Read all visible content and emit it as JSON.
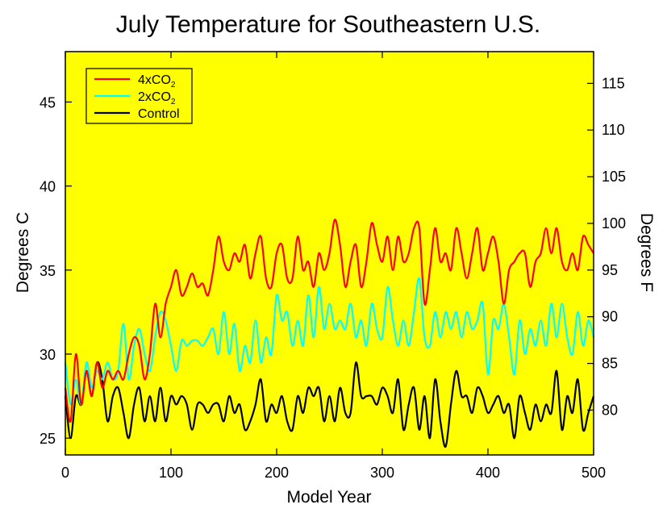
{
  "chart_data": {
    "type": "line",
    "title": "July Temperature for Southeastern U.S.",
    "xlabel": "Model Year",
    "ylabel": "Degrees C",
    "y2label": "Degrees F",
    "xlim": [
      0,
      500
    ],
    "ylim": [
      24,
      48
    ],
    "y2lim": [
      75.2,
      118.4
    ],
    "x_ticks": [
      "0",
      "100",
      "200",
      "300",
      "400",
      "500"
    ],
    "y_ticks": [
      "25",
      "30",
      "35",
      "40",
      "45"
    ],
    "y2_ticks": [
      "80",
      "85",
      "90",
      "95",
      "100",
      "105",
      "110",
      "115"
    ],
    "background_color": "#ffff00",
    "legend_position": "top-left",
    "legend": [
      {
        "label": "4xCO",
        "subscript": "2",
        "color": "#ff0000"
      },
      {
        "label": "2xCO",
        "subscript": "2",
        "color": "#00ffff"
      },
      {
        "label": "Control",
        "subscript": "",
        "color": "#000000"
      }
    ],
    "series": [
      {
        "name": "4xCO2",
        "color": "#ff0000",
        "x": [
          0,
          5,
          10,
          15,
          20,
          25,
          30,
          35,
          40,
          45,
          50,
          55,
          60,
          65,
          70,
          75,
          80,
          85,
          90,
          95,
          100,
          105,
          110,
          115,
          120,
          125,
          130,
          135,
          140,
          145,
          150,
          155,
          160,
          165,
          170,
          175,
          180,
          185,
          190,
          195,
          200,
          205,
          210,
          215,
          220,
          225,
          230,
          235,
          240,
          245,
          250,
          255,
          260,
          265,
          270,
          275,
          280,
          285,
          290,
          295,
          300,
          305,
          310,
          315,
          320,
          325,
          330,
          335,
          340,
          345,
          350,
          355,
          360,
          365,
          370,
          375,
          380,
          385,
          390,
          395,
          400,
          405,
          410,
          415,
          420,
          425,
          430,
          435,
          440,
          445,
          450,
          455,
          460,
          465,
          470,
          475,
          480,
          485,
          490,
          495,
          500
        ],
        "values": [
          28.0,
          26.0,
          30.0,
          27.0,
          29.0,
          27.5,
          29.5,
          28.0,
          29.0,
          28.5,
          29.0,
          28.5,
          30.0,
          31.0,
          30.5,
          28.5,
          30.0,
          33.0,
          31.0,
          33.0,
          34.0,
          35.0,
          33.5,
          34.0,
          34.8,
          34.0,
          34.2,
          33.5,
          35.0,
          37.0,
          35.5,
          35.0,
          36.0,
          35.5,
          36.5,
          34.5,
          36.0,
          37.0,
          34.5,
          34.0,
          36.0,
          36.5,
          34.5,
          34.5,
          37.0,
          35.0,
          35.5,
          34.0,
          36.0,
          35.0,
          36.0,
          38.0,
          36.5,
          34.0,
          35.5,
          36.5,
          34.0,
          35.5,
          37.8,
          36.5,
          35.5,
          37.0,
          35.0,
          37.0,
          35.5,
          36.0,
          37.5,
          37.5,
          33.0,
          35.0,
          37.5,
          35.5,
          36.0,
          35.0,
          37.5,
          36.0,
          34.5,
          36.0,
          37.5,
          35.0,
          36.0,
          37.0,
          35.5,
          33.0,
          35.0,
          35.5,
          36.0,
          36.0,
          34.0,
          35.5,
          36.0,
          37.5,
          36.0,
          37.5,
          35.5,
          35.0,
          36.0,
          35.0,
          37.0,
          36.5,
          36.0
        ]
      },
      {
        "name": "2xCO2",
        "color": "#00ffff",
        "x": [
          0,
          5,
          10,
          15,
          20,
          25,
          30,
          35,
          40,
          45,
          50,
          55,
          60,
          65,
          70,
          75,
          80,
          85,
          90,
          95,
          100,
          105,
          110,
          115,
          120,
          125,
          130,
          135,
          140,
          145,
          150,
          155,
          160,
          165,
          170,
          175,
          180,
          185,
          190,
          195,
          200,
          205,
          210,
          215,
          220,
          225,
          230,
          235,
          240,
          245,
          250,
          255,
          260,
          265,
          270,
          275,
          280,
          285,
          290,
          295,
          300,
          305,
          310,
          315,
          320,
          325,
          330,
          335,
          340,
          345,
          350,
          355,
          360,
          365,
          370,
          375,
          380,
          385,
          390,
          395,
          400,
          405,
          410,
          415,
          420,
          425,
          430,
          435,
          440,
          445,
          450,
          455,
          460,
          465,
          470,
          475,
          480,
          485,
          490,
          495,
          500
        ],
        "values": [
          29.5,
          27.0,
          28.5,
          27.0,
          29.5,
          28.0,
          29.0,
          28.5,
          29.5,
          28.5,
          29.0,
          31.8,
          28.5,
          30.5,
          31.5,
          30.0,
          29.0,
          31.0,
          32.5,
          32.0,
          30.5,
          29.0,
          30.8,
          30.5,
          30.8,
          30.8,
          30.5,
          31.0,
          31.5,
          30.0,
          32.5,
          30.0,
          31.8,
          29.0,
          30.5,
          29.5,
          32.0,
          29.5,
          31.0,
          30.0,
          33.5,
          32.0,
          32.5,
          30.5,
          32.0,
          30.5,
          33.5,
          31.0,
          34.0,
          31.5,
          33.0,
          31.5,
          32.0,
          31.5,
          33.0,
          31.0,
          32.0,
          30.5,
          33.0,
          31.5,
          31.0,
          34.0,
          32.0,
          30.5,
          32.0,
          30.5,
          32.5,
          34.5,
          31.0,
          30.5,
          32.5,
          31.0,
          32.5,
          31.5,
          32.5,
          31.0,
          32.5,
          31.5,
          32.0,
          33.0,
          28.8,
          32.0,
          31.5,
          33.0,
          31.0,
          28.8,
          32.0,
          30.0,
          31.5,
          30.5,
          32.0,
          30.5,
          33.0,
          31.0,
          33.0,
          31.0,
          30.0,
          32.5,
          30.5,
          32.0,
          31.0
        ]
      },
      {
        "name": "Control",
        "color": "#000000",
        "x": [
          0,
          5,
          10,
          15,
          20,
          25,
          30,
          35,
          40,
          45,
          50,
          55,
          60,
          65,
          70,
          75,
          80,
          85,
          90,
          95,
          100,
          105,
          110,
          115,
          120,
          125,
          130,
          135,
          140,
          145,
          150,
          155,
          160,
          165,
          170,
          175,
          180,
          185,
          190,
          195,
          200,
          205,
          210,
          215,
          220,
          225,
          230,
          235,
          240,
          245,
          250,
          255,
          260,
          265,
          270,
          275,
          280,
          285,
          290,
          295,
          300,
          305,
          310,
          315,
          320,
          325,
          330,
          335,
          340,
          345,
          350,
          355,
          360,
          365,
          370,
          375,
          380,
          385,
          390,
          395,
          400,
          405,
          410,
          415,
          420,
          425,
          430,
          435,
          440,
          445,
          450,
          455,
          460,
          465,
          470,
          475,
          480,
          485,
          490,
          495,
          500
        ],
        "values": [
          27.5,
          25.0,
          27.5,
          27.0,
          29.0,
          27.5,
          29.5,
          28.5,
          26.0,
          27.5,
          28.0,
          26.5,
          25.0,
          27.0,
          28.0,
          26.0,
          27.5,
          26.0,
          28.0,
          26.0,
          27.5,
          27.0,
          27.5,
          27.0,
          25.5,
          27.0,
          27.0,
          26.5,
          27.0,
          27.0,
          26.0,
          27.5,
          26.5,
          27.0,
          25.5,
          26.0,
          27.0,
          28.5,
          26.0,
          27.0,
          26.5,
          27.5,
          26.0,
          25.5,
          27.5,
          26.5,
          28.0,
          27.5,
          28.0,
          26.0,
          27.5,
          26.0,
          28.0,
          26.5,
          26.5,
          29.5,
          27.5,
          27.5,
          27.5,
          27.0,
          28.0,
          27.5,
          26.5,
          28.5,
          25.5,
          27.0,
          28.0,
          25.5,
          27.5,
          25.0,
          28.5,
          26.0,
          24.5,
          27.0,
          29.0,
          27.5,
          27.5,
          26.5,
          28.0,
          27.5,
          26.5,
          27.0,
          27.5,
          26.5,
          27.0,
          25.0,
          27.5,
          26.5,
          25.5,
          27.0,
          26.0,
          27.0,
          26.5,
          29.0,
          25.5,
          27.5,
          26.5,
          28.5,
          25.5,
          26.5,
          27.5
        ]
      }
    ]
  }
}
